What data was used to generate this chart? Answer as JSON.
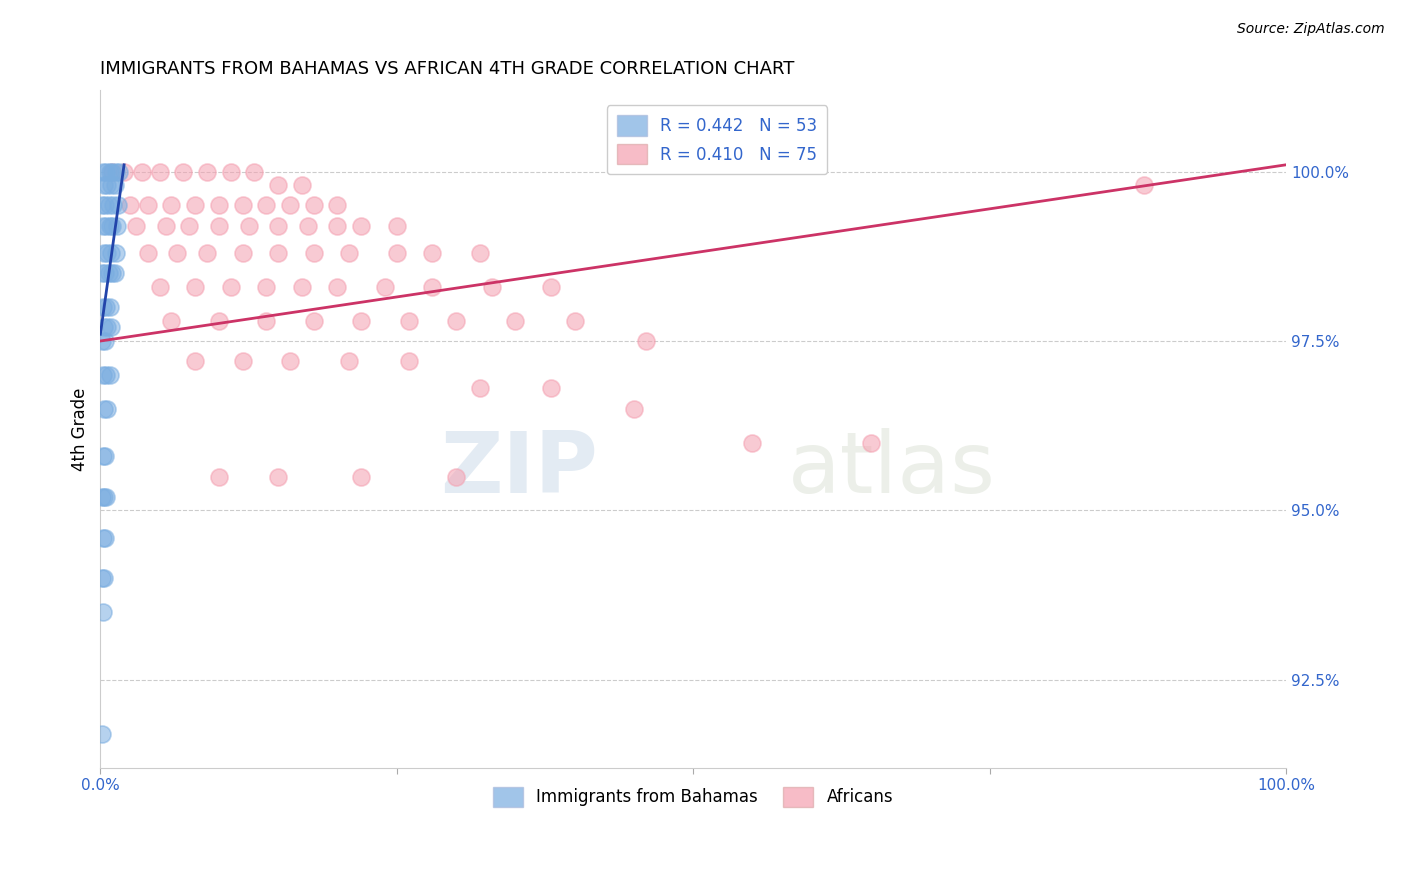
{
  "title": "IMMIGRANTS FROM BAHAMAS VS AFRICAN 4TH GRADE CORRELATION CHART",
  "source": "Source: ZipAtlas.com",
  "ylabel": "4th Grade",
  "xlim": [
    0.0,
    100.0
  ],
  "ylim": [
    91.2,
    101.2
  ],
  "yticks": [
    92.5,
    95.0,
    97.5,
    100.0
  ],
  "ytick_labels": [
    "92.5%",
    "95.0%",
    "97.5%",
    "100.0%"
  ],
  "r_bahamas": 0.442,
  "n_bahamas": 53,
  "r_african": 0.41,
  "n_african": 75,
  "legend_label_bahamas": "Immigrants from Bahamas",
  "legend_label_african": "Africans",
  "blue_color": "#7aade0",
  "pink_color": "#f4a0b0",
  "blue_line_color": "#2244aa",
  "pink_line_color": "#cc3366",
  "watermark_zip": "ZIP",
  "watermark_atlas": "atlas",
  "blue_scatter_x": [
    0.2,
    0.5,
    0.8,
    1.0,
    1.3,
    1.6,
    0.3,
    0.6,
    0.9,
    1.2,
    0.1,
    0.4,
    0.7,
    1.1,
    1.5,
    0.2,
    0.5,
    0.8,
    1.0,
    1.4,
    0.3,
    0.6,
    0.9,
    1.3,
    0.1,
    0.4,
    0.7,
    1.0,
    1.2,
    0.2,
    0.5,
    0.8,
    0.3,
    0.6,
    0.9,
    0.1,
    0.4,
    0.2,
    0.5,
    0.8,
    0.3,
    0.6,
    0.2,
    0.4,
    0.1,
    0.3,
    0.5,
    0.2,
    0.4,
    0.1,
    0.3,
    0.2,
    0.1
  ],
  "blue_scatter_y": [
    100.0,
    100.0,
    100.0,
    100.0,
    100.0,
    100.0,
    99.8,
    99.8,
    99.8,
    99.8,
    99.5,
    99.5,
    99.5,
    99.5,
    99.5,
    99.2,
    99.2,
    99.2,
    99.2,
    99.2,
    98.8,
    98.8,
    98.8,
    98.8,
    98.5,
    98.5,
    98.5,
    98.5,
    98.5,
    98.0,
    98.0,
    98.0,
    97.7,
    97.7,
    97.7,
    97.5,
    97.5,
    97.0,
    97.0,
    97.0,
    96.5,
    96.5,
    95.8,
    95.8,
    95.2,
    95.2,
    95.2,
    94.6,
    94.6,
    94.0,
    94.0,
    93.5,
    91.7
  ],
  "pink_scatter_x": [
    1.0,
    2.0,
    3.5,
    5.0,
    7.0,
    9.0,
    11.0,
    13.0,
    15.0,
    17.0,
    2.5,
    4.0,
    6.0,
    8.0,
    10.0,
    12.0,
    14.0,
    16.0,
    18.0,
    20.0,
    3.0,
    5.5,
    7.5,
    10.0,
    12.5,
    15.0,
    17.5,
    20.0,
    22.0,
    25.0,
    4.0,
    6.5,
    9.0,
    12.0,
    15.0,
    18.0,
    21.0,
    25.0,
    28.0,
    32.0,
    5.0,
    8.0,
    11.0,
    14.0,
    17.0,
    20.0,
    24.0,
    28.0,
    33.0,
    38.0,
    6.0,
    10.0,
    14.0,
    18.0,
    22.0,
    26.0,
    30.0,
    35.0,
    40.0,
    46.0,
    8.0,
    12.0,
    16.0,
    21.0,
    26.0,
    32.0,
    38.0,
    45.0,
    55.0,
    65.0,
    10.0,
    15.0,
    22.0,
    30.0,
    88.0
  ],
  "pink_scatter_y": [
    100.0,
    100.0,
    100.0,
    100.0,
    100.0,
    100.0,
    100.0,
    100.0,
    99.8,
    99.8,
    99.5,
    99.5,
    99.5,
    99.5,
    99.5,
    99.5,
    99.5,
    99.5,
    99.5,
    99.5,
    99.2,
    99.2,
    99.2,
    99.2,
    99.2,
    99.2,
    99.2,
    99.2,
    99.2,
    99.2,
    98.8,
    98.8,
    98.8,
    98.8,
    98.8,
    98.8,
    98.8,
    98.8,
    98.8,
    98.8,
    98.3,
    98.3,
    98.3,
    98.3,
    98.3,
    98.3,
    98.3,
    98.3,
    98.3,
    98.3,
    97.8,
    97.8,
    97.8,
    97.8,
    97.8,
    97.8,
    97.8,
    97.8,
    97.8,
    97.5,
    97.2,
    97.2,
    97.2,
    97.2,
    97.2,
    96.8,
    96.8,
    96.5,
    96.0,
    96.0,
    95.5,
    95.5,
    95.5,
    95.5,
    99.8
  ],
  "blue_trendline_x": [
    0.0,
    2.0
  ],
  "blue_trendline_y": [
    97.6,
    100.1
  ],
  "pink_trendline_x": [
    0.0,
    100.0
  ],
  "pink_trendline_y": [
    97.5,
    100.1
  ]
}
